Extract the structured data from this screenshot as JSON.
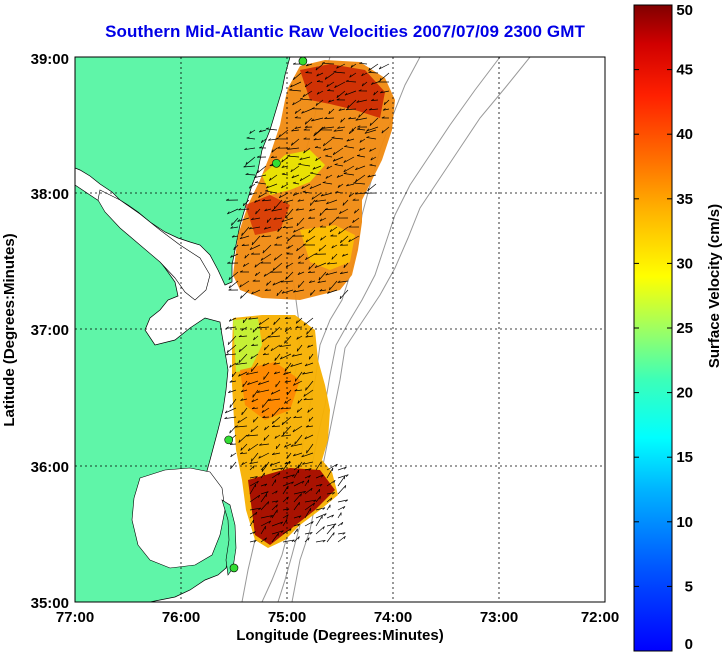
{
  "title": "Southern Mid-Atlantic Raw Velocities 2007/07/09 2300 GMT",
  "x_axis": {
    "label": "Longitude (Degrees:Minutes)",
    "ticks": [
      "77:00",
      "76:00",
      "75:00",
      "74:00",
      "73:00",
      "72:00"
    ]
  },
  "y_axis": {
    "label": "Latitude (Degrees:Minutes)",
    "ticks": [
      "39:00",
      "38:00",
      "37:00",
      "36:00",
      "35:00"
    ]
  },
  "colorbar": {
    "label": "Surface Velocity (cm/s)",
    "ticks": [
      "0",
      "5",
      "10",
      "15",
      "20",
      "25",
      "30",
      "35",
      "40",
      "45",
      "50"
    ],
    "min": 0,
    "max": 50,
    "colormap": "jet"
  },
  "map_extent": {
    "lon": [
      -77,
      -72
    ],
    "lat": [
      35,
      39
    ]
  },
  "colors": {
    "land": "#5ff5a8",
    "title": "#0000e6",
    "bathymetry": "#999999",
    "grid": "#000000"
  },
  "site_markers": [
    {
      "lon": -74.85,
      "lat": 38.97
    },
    {
      "lon": -75.1,
      "lat": 38.22
    },
    {
      "lon": -75.55,
      "lat": 36.19
    },
    {
      "lon": -75.5,
      "lat": 35.25
    }
  ]
}
